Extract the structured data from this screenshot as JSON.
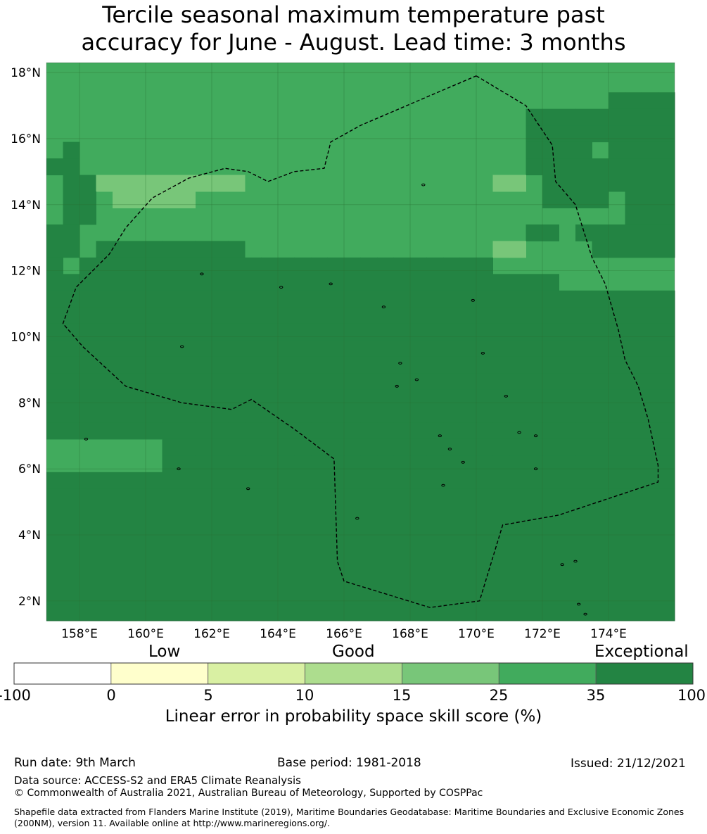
{
  "title": {
    "line1": "Tercile seasonal maximum temperature past",
    "line2": "accuracy for June - August. Lead time: 3 months"
  },
  "map": {
    "lon_labels": [
      "158°E",
      "160°E",
      "162°E",
      "164°E",
      "166°E",
      "168°E",
      "170°E",
      "172°E",
      "174°E"
    ],
    "lat_labels": [
      "18°N",
      "16°N",
      "14°N",
      "12°N",
      "10°N",
      "8°N",
      "6°N",
      "4°N",
      "2°N"
    ],
    "lon_range": [
      157.0,
      176.0
    ],
    "lat_range": [
      1.4,
      18.3
    ],
    "cell_size_deg": 0.5,
    "grid_origin": [
      157.0,
      1.4
    ],
    "skill_grid": [
      "55555555555555555555555555555555555555",
      "55555555555555555555555555555555555555",
      "55555555555555555555555555555555556666",
      "55555555555555555555555555555666666666",
      "55555555555555555555555555555666666666",
      "56555555555555555555555555555666656666",
      "66555555555555555555555555555666666666",
      "56644444444455555555555555544566666666",
      "56654444455555555555555555555566665666",
      "56655555555555555555555555555555555666",
      "66555555555555555555555555555665666666",
      "66566666666655555555555555544555566666",
      "65666666666666666666666666655555555555",
      "66666666666666666666666666666665555555",
      "66666666666666666666666666666666666666",
      "66666666666666666666666666666666666666",
      "66666666666666666666666666666666666666",
      "66666666666666666666666666666666666666",
      "66666666666666666666666666666666666666",
      "66666666666666666666666666666666666666",
      "66666666666666666666666666666666666666",
      "66666666666666666666666666666666666666",
      "66666666666666666666666666666666666666",
      "55555556666666666666666666666666666666",
      "55555556666666666666666666666666666666",
      "66666666666666666666666666666666666666",
      "66666666666666666666666666666666666666",
      "66666666666666666666666666666666666666",
      "66666666666666666666666666666666666666",
      "66666666666666666666666666666666666666",
      "66666666666666666666666666666666666666",
      "66666666666666666666666666666666666666",
      "66666666666666666666666666666666666666",
      "66666666666666666666666666666666666666"
    ],
    "boundary_outline": [
      [
        170.0,
        17.9
      ],
      [
        171.5,
        17.0
      ],
      [
        172.3,
        15.8
      ],
      [
        172.4,
        14.7
      ],
      [
        173.0,
        14.0
      ],
      [
        173.5,
        12.4
      ],
      [
        173.9,
        11.6
      ],
      [
        174.3,
        10.2
      ],
      [
        174.5,
        9.3
      ],
      [
        174.9,
        8.5
      ],
      [
        175.2,
        7.5
      ],
      [
        175.5,
        6.1
      ],
      [
        175.5,
        5.6
      ],
      [
        172.5,
        4.6
      ],
      [
        170.8,
        4.3
      ],
      [
        170.1,
        2.0
      ],
      [
        168.6,
        1.8
      ],
      [
        166.0,
        2.6
      ],
      [
        165.8,
        3.2
      ],
      [
        165.7,
        6.3
      ],
      [
        164.5,
        7.2
      ],
      [
        163.2,
        8.1
      ],
      [
        162.6,
        7.8
      ],
      [
        161.1,
        8.0
      ],
      [
        159.4,
        8.5
      ],
      [
        158.1,
        9.7
      ],
      [
        157.5,
        10.4
      ],
      [
        157.9,
        11.5
      ],
      [
        158.9,
        12.5
      ],
      [
        159.4,
        13.3
      ],
      [
        160.2,
        14.2
      ],
      [
        161.3,
        14.8
      ],
      [
        162.4,
        15.1
      ],
      [
        163.1,
        15.0
      ],
      [
        163.7,
        14.7
      ],
      [
        164.5,
        15.0
      ],
      [
        165.4,
        15.1
      ],
      [
        165.6,
        15.9
      ],
      [
        166.5,
        16.4
      ],
      [
        168.6,
        17.3
      ],
      [
        170.0,
        17.9
      ]
    ],
    "islands": [
      [
        158.2,
        6.9
      ],
      [
        161.0,
        6.0
      ],
      [
        163.1,
        5.4
      ],
      [
        166.4,
        4.5
      ],
      [
        167.2,
        10.9
      ],
      [
        167.7,
        9.2
      ],
      [
        168.2,
        8.7
      ],
      [
        168.9,
        7.0
      ],
      [
        169.2,
        6.6
      ],
      [
        169.6,
        6.2
      ],
      [
        170.2,
        9.5
      ],
      [
        170.9,
        8.2
      ],
      [
        171.3,
        7.1
      ],
      [
        171.8,
        7.0
      ],
      [
        171.8,
        6.0
      ],
      [
        172.6,
        3.1
      ],
      [
        173.0,
        3.2
      ],
      [
        173.1,
        1.9
      ],
      [
        173.3,
        1.6
      ],
      [
        165.6,
        11.6
      ],
      [
        164.1,
        11.5
      ],
      [
        161.7,
        11.9
      ],
      [
        161.1,
        9.7
      ],
      [
        169.9,
        11.1
      ],
      [
        168.4,
        14.6
      ],
      [
        169.0,
        5.5
      ],
      [
        167.6,
        8.5
      ]
    ],
    "colors": {
      "background": "#5fb35c",
      "grid": "#2a6e30",
      "boundary": "#000000"
    }
  },
  "colorbar": {
    "words": [
      "Low",
      "Good",
      "Exceptional"
    ],
    "ticks": [
      "-100",
      "0",
      "5",
      "10",
      "15",
      "25",
      "35",
      "100"
    ],
    "colors": [
      "#ffffff",
      "#ffffcc",
      "#d9f0a3",
      "#addd8e",
      "#78c679",
      "#41ab5d",
      "#238443"
    ],
    "label": "Linear error in probability space skill score (%)"
  },
  "footer": {
    "run_date": "Run date: 9th March",
    "base_period": "Base period: 1981-2018",
    "issued": "Issued: 21/12/2021",
    "data_source": "Data source: ACCESS-S2 and ERA5 Climate Reanalysis",
    "copyright": "© Commonwealth of Australia 2021, Australian Bureau of Meteorology, Supported by COSPPac",
    "shapefile": "Shapefile data extracted from Flanders Marine Institute (2019), Maritime Boundaries Geodatabase: Maritime Boundaries and Exclusive Economic Zones (200NM), version 11. Available online at http://www.marineregions.org/."
  }
}
